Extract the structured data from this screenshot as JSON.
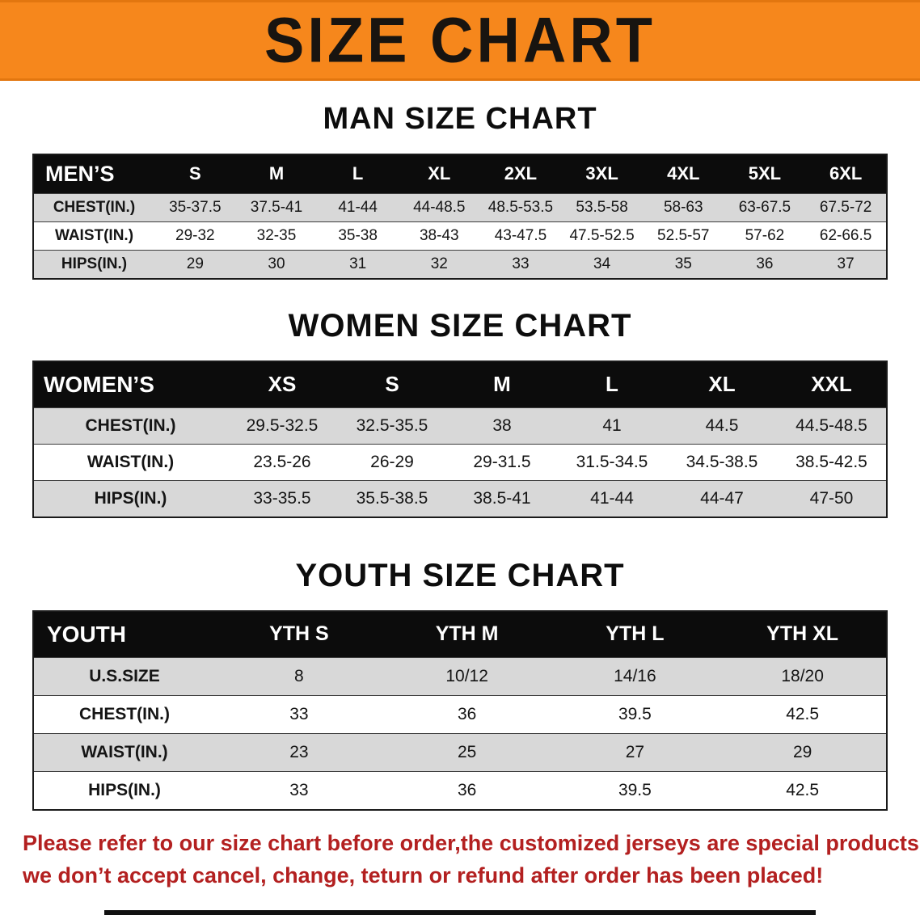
{
  "banner": {
    "title": "SIZE CHART",
    "bg_color": "#f6871c",
    "text_color": "#181410"
  },
  "sections": [
    {
      "id": "men",
      "heading": "MAN SIZE CHART",
      "table": {
        "header": [
          "MEN’S",
          "S",
          "M",
          "L",
          "XL",
          "2XL",
          "3XL",
          "4XL",
          "5XL",
          "6XL"
        ],
        "rows": [
          [
            "CHEST(IN.)",
            "35-37.5",
            "37.5-41",
            "41-44",
            "44-48.5",
            "48.5-53.5",
            "53.5-58",
            "58-63",
            "63-67.5",
            "67.5-72"
          ],
          [
            "WAIST(IN.)",
            "29-32",
            "32-35",
            "35-38",
            "38-43",
            "43-47.5",
            "47.5-52.5",
            "52.5-57",
            "57-62",
            "62-66.5"
          ],
          [
            "HIPS(IN.)",
            "29",
            "30",
            "31",
            "32",
            "33",
            "34",
            "35",
            "36",
            "37"
          ]
        ]
      }
    },
    {
      "id": "women",
      "heading": "WOMEN SIZE CHART",
      "table": {
        "header": [
          "WOMEN’S",
          "XS",
          "S",
          "M",
          "L",
          "XL",
          "XXL"
        ],
        "rows": [
          [
            "CHEST(IN.)",
            "29.5-32.5",
            "32.5-35.5",
            "38",
            "41",
            "44.5",
            "44.5-48.5"
          ],
          [
            "WAIST(IN.)",
            "23.5-26",
            "26-29",
            "29-31.5",
            "31.5-34.5",
            "34.5-38.5",
            "38.5-42.5"
          ],
          [
            "HIPS(IN.)",
            "33-35.5",
            "35.5-38.5",
            "38.5-41",
            "41-44",
            "44-47",
            "47-50"
          ]
        ]
      }
    },
    {
      "id": "youth",
      "heading": "YOUTH SIZE CHART",
      "table": {
        "header": [
          "YOUTH",
          "YTH S",
          "YTH M",
          "YTH L",
          "YTH XL"
        ],
        "rows": [
          [
            "U.S.SIZE",
            "8",
            "10/12",
            "14/16",
            "18/20"
          ],
          [
            "CHEST(IN.)",
            "33",
            "36",
            "39.5",
            "42.5"
          ],
          [
            "WAIST(IN.)",
            "23",
            "25",
            "27",
            "29"
          ],
          [
            "HIPS(IN.)",
            "33",
            "36",
            "39.5",
            "42.5"
          ]
        ]
      }
    }
  ],
  "note": {
    "line1": "Please refer to our size chart before order,the customized jerseys are special products,",
    "line2": "we don’t accept cancel, change, teturn or refund after order has been placed!",
    "color": "#b32020"
  }
}
